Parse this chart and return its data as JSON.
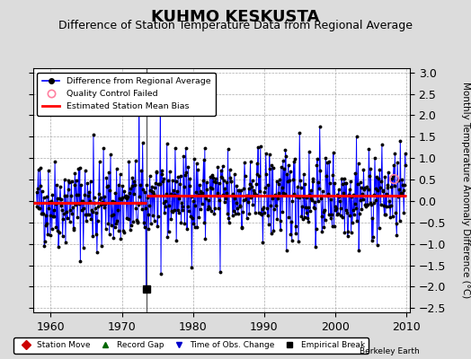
{
  "title": "KUHMO KESKUSTA",
  "subtitle": "Difference of Station Temperature Data from Regional Average",
  "ylabel": "Monthly Temperature Anomaly Difference (°C)",
  "xlim": [
    1957.5,
    2010.5
  ],
  "ylim": [
    -2.6,
    3.1
  ],
  "yticks": [
    -2.5,
    -2,
    -1.5,
    -1,
    -0.5,
    0,
    0.5,
    1,
    1.5,
    2,
    2.5,
    3
  ],
  "xticks": [
    1960,
    1970,
    1980,
    1990,
    2000,
    2010
  ],
  "bias_before_break": -0.05,
  "bias_after_break": 0.13,
  "break_year": 1973.5,
  "empirical_break_value": -2.05,
  "qc_fail_year": 2008.3,
  "qc_fail_value": 0.52,
  "line_color": "#0000FF",
  "bias_color": "#FF0000",
  "background_color": "#DCDCDC",
  "plot_bg_color": "#FFFFFF",
  "grid_color": "#AAAAAA",
  "title_fontsize": 13,
  "subtitle_fontsize": 9,
  "ylabel_fontsize": 7.5,
  "tick_fontsize": 9,
  "seed": 42,
  "years_start": 1958,
  "years_end": 2009
}
